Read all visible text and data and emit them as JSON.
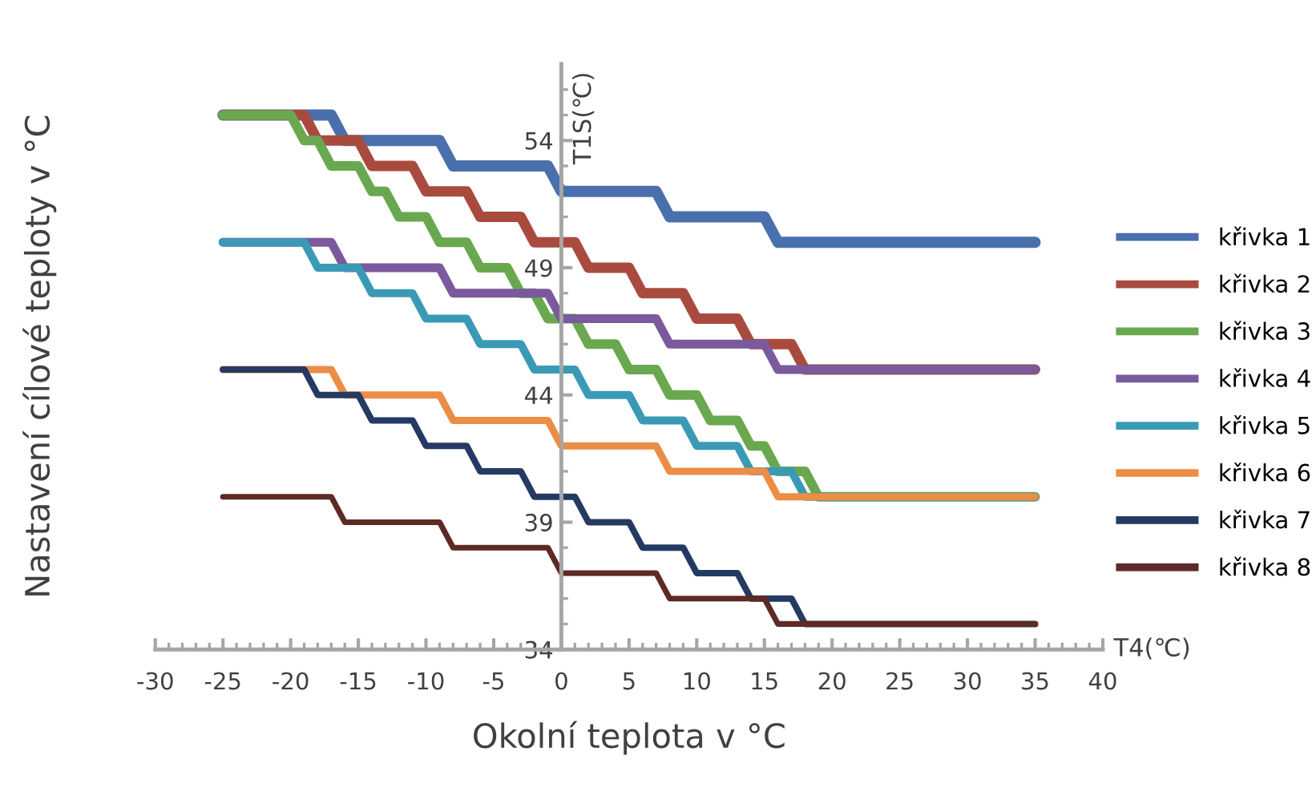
{
  "chart_data": {
    "type": "line",
    "xlabel": "Okolní teplota v °C",
    "ylabel": "Nastavení cílové teploty v °C",
    "annotations": [
      "T1S(℃)",
      "T4(℃)"
    ],
    "xlim": [
      -30,
      40
    ],
    "ylim": [
      34,
      57
    ],
    "xticks": [
      -30,
      {
        "value": -29,
        "label": null
      },
      {
        "value": -28,
        "label": null
      },
      {
        "value": -27,
        "label": null
      },
      {
        "value": -26,
        "label": null
      },
      -25,
      {
        "value": -24,
        "label": null
      },
      {
        "value": -23,
        "label": null
      },
      {
        "value": -22,
        "label": null
      },
      {
        "value": -21,
        "label": null
      },
      -20,
      {
        "value": -19,
        "label": null
      },
      {
        "value": -18,
        "label": null
      },
      {
        "value": -17,
        "label": null
      },
      {
        "value": -16,
        "label": null
      },
      -15,
      {
        "value": -14,
        "label": null
      },
      {
        "value": -13,
        "label": null
      },
      {
        "value": -12,
        "label": null
      },
      {
        "value": -11,
        "label": null
      },
      -10,
      {
        "value": -9,
        "label": null
      },
      {
        "value": -8,
        "label": null
      },
      {
        "value": -7,
        "label": null
      },
      {
        "value": -6,
        "label": null
      },
      -5,
      {
        "value": -4,
        "label": null
      },
      {
        "value": -3,
        "label": null
      },
      {
        "value": -2,
        "label": null
      },
      {
        "value": -1,
        "label": null
      },
      0,
      {
        "value": 1,
        "label": null
      },
      {
        "value": 2,
        "label": null
      },
      {
        "value": 3,
        "label": null
      },
      {
        "value": 4,
        "label": null
      },
      5,
      {
        "value": 6,
        "label": null
      },
      {
        "value": 7,
        "label": null
      },
      {
        "value": 8,
        "label": null
      },
      {
        "value": 9,
        "label": null
      },
      10,
      {
        "value": 11,
        "label": null
      },
      {
        "value": 12,
        "label": null
      },
      {
        "value": 13,
        "label": null
      },
      {
        "value": 14,
        "label": null
      },
      15,
      {
        "value": 16,
        "label": null
      },
      {
        "value": 17,
        "label": null
      },
      {
        "value": 18,
        "label": null
      },
      {
        "value": 19,
        "label": null
      },
      20,
      {
        "value": 21,
        "label": null
      },
      {
        "value": 22,
        "label": null
      },
      {
        "value": 23,
        "label": null
      },
      {
        "value": 24,
        "label": null
      },
      25,
      {
        "value": 26,
        "label": null
      },
      {
        "value": 27,
        "label": null
      },
      {
        "value": 28,
        "label": null
      },
      {
        "value": 29,
        "label": null
      },
      30,
      {
        "value": 31,
        "label": null
      },
      {
        "value": 32,
        "label": null
      },
      {
        "value": 33,
        "label": null
      },
      {
        "value": 34,
        "label": null
      },
      35,
      {
        "value": 36,
        "label": null
      },
      {
        "value": 37,
        "label": null
      },
      {
        "value": 38,
        "label": null
      },
      {
        "value": 39,
        "label": null
      },
      40
    ],
    "yticks": [
      34,
      {
        "value": 35,
        "label": null
      },
      {
        "value": 36,
        "label": null
      },
      {
        "value": 37,
        "label": null
      },
      {
        "value": 38,
        "label": null
      },
      39,
      {
        "value": 40,
        "label": null
      },
      {
        "value": 41,
        "label": null
      },
      {
        "value": 42,
        "label": null
      },
      {
        "value": 43,
        "label": null
      },
      44,
      {
        "value": 45,
        "label": null
      },
      {
        "value": 46,
        "label": null
      },
      {
        "value": 47,
        "label": null
      },
      {
        "value": 48,
        "label": null
      },
      49,
      {
        "value": 50,
        "label": null
      },
      {
        "value": 51,
        "label": null
      },
      {
        "value": 52,
        "label": null
      },
      {
        "value": 53,
        "label": null
      },
      54,
      {
        "value": 55,
        "label": null
      },
      {
        "value": 56,
        "label": null
      }
    ],
    "grid": false,
    "legend": "right",
    "marker": "none",
    "line_style": "solid",
    "series": [
      {
        "name": "křivka 1",
        "color": "#4a6fad",
        "x": [
          -25,
          -17,
          -16,
          -9,
          -8,
          -1,
          0,
          7,
          8,
          15,
          16,
          35
        ],
        "values": [
          55,
          55,
          54,
          54,
          53,
          53,
          52,
          52,
          51,
          51,
          50,
          50
        ]
      },
      {
        "name": "křivka 2",
        "color": "#a84b3e",
        "x": [
          -25,
          -19,
          -18,
          -15,
          -14,
          -11,
          -10,
          -7,
          -6,
          -3,
          -2,
          1,
          2,
          5,
          6,
          9,
          10,
          13,
          14,
          17,
          18,
          35
        ],
        "values": [
          55,
          55,
          54,
          54,
          53,
          53,
          52,
          52,
          51,
          51,
          50,
          50,
          49,
          49,
          48,
          48,
          47,
          47,
          46,
          46,
          45,
          45
        ]
      },
      {
        "name": "křivka 3",
        "color": "#6aa84f",
        "x": [
          -25,
          -20,
          -19,
          -18,
          -17,
          -15,
          -14,
          -13,
          -12,
          -10,
          -9,
          -7,
          -6,
          -4,
          -3,
          -2,
          -1,
          1,
          2,
          4,
          5,
          7,
          8,
          10,
          11,
          13,
          14,
          15,
          16,
          18,
          19,
          35
        ],
        "values": [
          55,
          55,
          54,
          54,
          53,
          53,
          52,
          52,
          51,
          51,
          50,
          50,
          49,
          49,
          48,
          48,
          47,
          47,
          46,
          46,
          45,
          45,
          44,
          44,
          43,
          43,
          42,
          42,
          41,
          41,
          40,
          40
        ]
      },
      {
        "name": "křivka 4",
        "color": "#7a5a9c",
        "x": [
          -25,
          -17,
          -16,
          -9,
          -8,
          -1,
          0,
          7,
          8,
          15,
          16,
          35
        ],
        "values": [
          50,
          50,
          49,
          49,
          48,
          48,
          47,
          47,
          46,
          46,
          45,
          45
        ]
      },
      {
        "name": "křivka 5",
        "color": "#3a9ab5",
        "x": [
          -25,
          -19,
          -18,
          -15,
          -14,
          -11,
          -10,
          -7,
          -6,
          -3,
          -2,
          1,
          2,
          5,
          6,
          9,
          10,
          13,
          14,
          17,
          18,
          35
        ],
        "values": [
          50,
          50,
          49,
          49,
          48,
          48,
          47,
          47,
          46,
          46,
          45,
          45,
          44,
          44,
          43,
          43,
          42,
          42,
          41,
          41,
          40,
          40
        ]
      },
      {
        "name": "křivka 6",
        "color": "#ec8d46",
        "x": [
          -25,
          -17,
          -16,
          -9,
          -8,
          -1,
          0,
          7,
          8,
          15,
          16,
          35
        ],
        "values": [
          45,
          45,
          44,
          44,
          43,
          43,
          42,
          42,
          41,
          41,
          40,
          40
        ]
      },
      {
        "name": "křivka 7",
        "color": "#253a63",
        "x": [
          -25,
          -19,
          -18,
          -15,
          -14,
          -11,
          -10,
          -7,
          -6,
          -3,
          -2,
          1,
          2,
          5,
          6,
          9,
          10,
          13,
          14,
          17,
          18,
          35
        ],
        "values": [
          45,
          45,
          44,
          44,
          43,
          43,
          42,
          42,
          41,
          41,
          40,
          40,
          39,
          39,
          38,
          38,
          37,
          37,
          36,
          36,
          35,
          35
        ]
      },
      {
        "name": "křivka 8",
        "color": "#5e2a25",
        "x": [
          -25,
          -17,
          -16,
          -9,
          -8,
          -1,
          0,
          7,
          8,
          15,
          16,
          35
        ],
        "values": [
          40,
          40,
          39,
          39,
          38,
          38,
          37,
          37,
          36,
          36,
          35,
          35
        ]
      }
    ]
  }
}
